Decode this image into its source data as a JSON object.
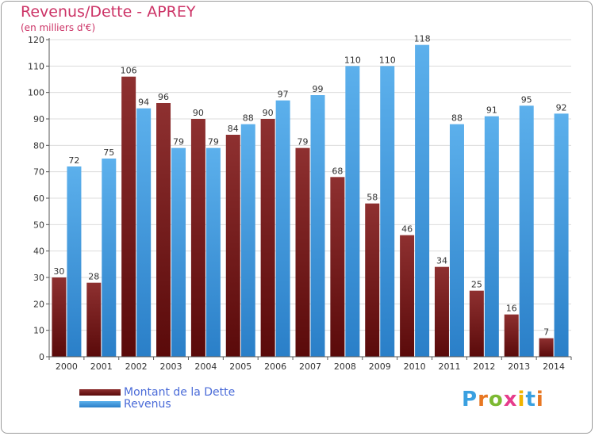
{
  "header": {
    "title": "Revenus/Dette - APREY",
    "subtitle": "(en milliers d'€)"
  },
  "legend": {
    "items": [
      {
        "label": "Montant de la Dette",
        "color": "#7a1a1a"
      },
      {
        "label": "Revenus",
        "color": "#3d9ae0"
      }
    ]
  },
  "logo": {
    "letters": [
      "P",
      "r",
      "o",
      "x",
      "i",
      "t",
      "i"
    ],
    "colors": [
      "#3aa0e0",
      "#e87722",
      "#7cb932",
      "#e63c8c",
      "#f0b400",
      "#3aa0e0",
      "#e87722"
    ]
  },
  "chart_data": {
    "type": "bar",
    "categories": [
      "2000",
      "2001",
      "2002",
      "2003",
      "2004",
      "2005",
      "2006",
      "2007",
      "2008",
      "2009",
      "2010",
      "2011",
      "2012",
      "2013",
      "2014"
    ],
    "series": [
      {
        "name": "Montant de la Dette",
        "color": "#7a1a1a",
        "values": [
          30,
          28,
          106,
          96,
          90,
          84,
          90,
          79,
          68,
          58,
          46,
          34,
          25,
          16,
          7
        ]
      },
      {
        "name": "Revenus",
        "color": "#3d9ae0",
        "values": [
          72,
          75,
          94,
          79,
          79,
          88,
          97,
          99,
          110,
          110,
          118,
          88,
          91,
          95,
          92
        ]
      }
    ],
    "ylim": [
      0,
      120
    ],
    "yticks": [
      0,
      10,
      20,
      30,
      40,
      50,
      60,
      70,
      80,
      90,
      100,
      110,
      120
    ],
    "grid": true,
    "legend_position": "bottom-left"
  }
}
